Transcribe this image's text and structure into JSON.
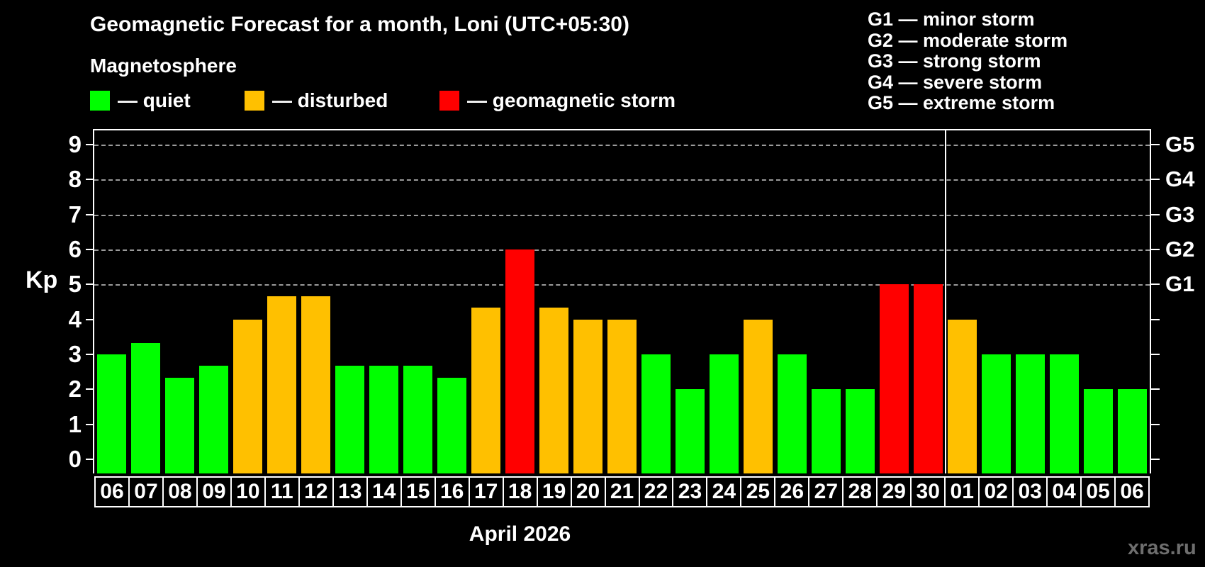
{
  "title": "Geomagnetic Forecast for a month, Loni (UTC+05:30)",
  "subtitle": "Magnetosphere",
  "legend": [
    {
      "label": "— quiet",
      "color": "#00ff00",
      "status": "quiet"
    },
    {
      "label": "— disturbed",
      "color": "#ffc000",
      "status": "disturbed"
    },
    {
      "label": "— geomagnetic storm",
      "color": "#ff0000",
      "status": "storm"
    }
  ],
  "g_legend": [
    "G1 — minor storm",
    "G2 — moderate storm",
    "G3 — strong storm",
    "G4 — severe storm",
    "G5 — extreme storm"
  ],
  "axis": {
    "left_label": "Kp"
  },
  "month_label": "April 2026",
  "watermark": "xras.ru",
  "chart_data": {
    "type": "bar",
    "title": "Geomagnetic Forecast for a month, Loni (UTC+05:30)",
    "subtitle": "Magnetosphere",
    "xlabel": "April 2026",
    "ylabel": "Kp",
    "ylim": [
      0,
      9
    ],
    "y_ticks": [
      0,
      1,
      2,
      3,
      4,
      5,
      6,
      7,
      8,
      9
    ],
    "grid": "horizontal dashed lines at Kp 5-9 only",
    "legend_position": "top-left",
    "categories": [
      "06",
      "07",
      "08",
      "09",
      "10",
      "11",
      "12",
      "13",
      "14",
      "15",
      "16",
      "17",
      "18",
      "19",
      "20",
      "21",
      "22",
      "23",
      "24",
      "25",
      "26",
      "27",
      "28",
      "29",
      "30",
      "01",
      "02",
      "03",
      "04",
      "05",
      "06"
    ],
    "values": [
      3,
      3.33,
      2.33,
      2.67,
      4,
      4.67,
      4.67,
      2.67,
      2.67,
      2.67,
      2.33,
      4.33,
      6,
      4.33,
      4,
      4,
      3,
      2,
      3,
      4,
      3,
      2,
      2,
      5,
      5,
      4,
      3,
      3,
      3,
      2,
      2
    ],
    "statuses": [
      "quiet",
      "quiet",
      "quiet",
      "quiet",
      "disturbed",
      "disturbed",
      "disturbed",
      "quiet",
      "quiet",
      "quiet",
      "quiet",
      "disturbed",
      "storm",
      "disturbed",
      "disturbed",
      "disturbed",
      "quiet",
      "quiet",
      "quiet",
      "disturbed",
      "quiet",
      "quiet",
      "quiet",
      "storm",
      "storm",
      "disturbed",
      "quiet",
      "quiet",
      "quiet",
      "quiet",
      "quiet"
    ],
    "status_colors": {
      "quiet": "#00ff00",
      "disturbed": "#ffc000",
      "storm": "#ff0000"
    },
    "right_axis": [
      {
        "kp": 5,
        "label": "G1"
      },
      {
        "kp": 6,
        "label": "G2"
      },
      {
        "kp": 7,
        "label": "G3"
      },
      {
        "kp": 8,
        "label": "G4"
      },
      {
        "kp": 9,
        "label": "G5"
      }
    ],
    "month_boundary_after_index": 24
  }
}
